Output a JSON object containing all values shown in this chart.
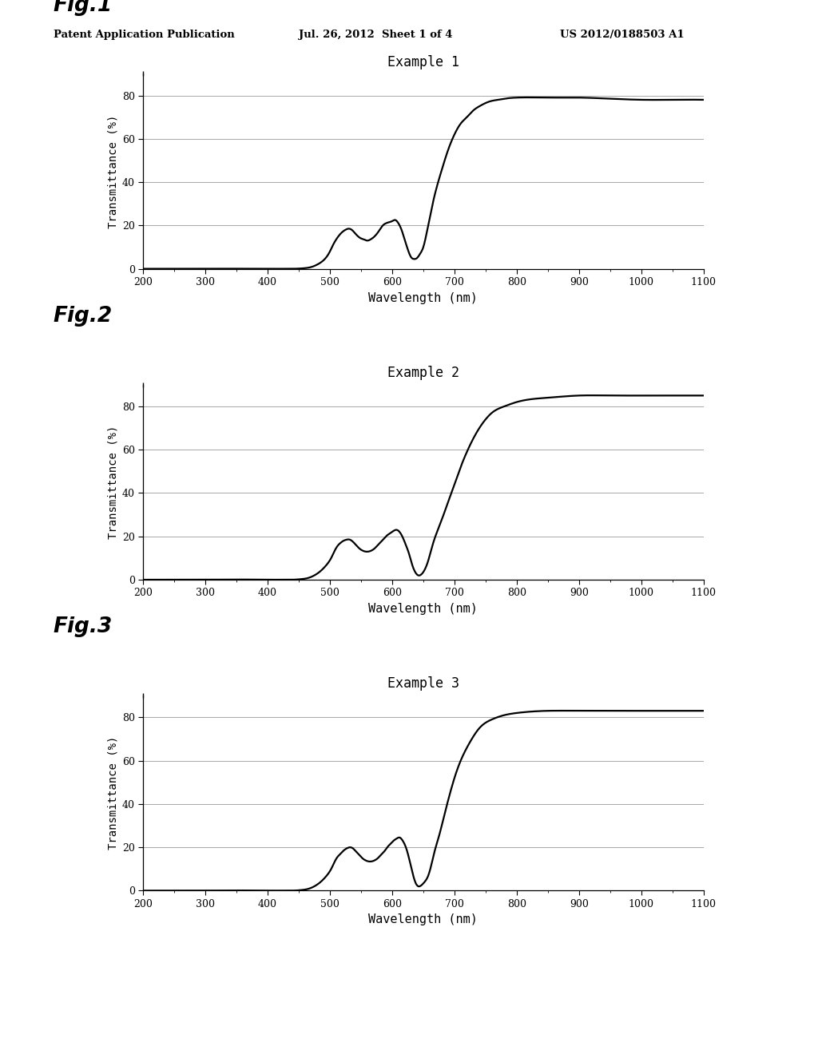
{
  "header_left": "Patent Application Publication",
  "header_mid": "Jul. 26, 2012  Sheet 1 of 4",
  "header_right": "US 2012/0188503 A1",
  "fig_labels": [
    "Fig.1",
    "Fig.2",
    "Fig.3"
  ],
  "titles": [
    "Example 1",
    "Example 2",
    "Example 3"
  ],
  "xlabel": "Wavelength (nm)",
  "ylabel": "Transmittance (%)",
  "xlim": [
    200,
    1100
  ],
  "ylim": [
    0,
    90
  ],
  "yticks": [
    0,
    20,
    40,
    60,
    80
  ],
  "xticks": [
    200,
    300,
    400,
    500,
    600,
    700,
    800,
    900,
    1000,
    1100
  ],
  "background_color": "#ffffff",
  "line_color": "#000000",
  "grid_color": "#999999",
  "curve1_x": [
    200,
    300,
    400,
    440,
    460,
    470,
    480,
    490,
    500,
    505,
    510,
    515,
    520,
    525,
    530,
    535,
    540,
    545,
    550,
    555,
    560,
    565,
    570,
    575,
    580,
    585,
    590,
    595,
    600,
    605,
    610,
    615,
    620,
    625,
    630,
    635,
    640,
    645,
    650,
    655,
    660,
    665,
    670,
    680,
    690,
    700,
    710,
    720,
    730,
    740,
    750,
    760,
    770,
    780,
    800,
    850,
    900,
    950,
    1000,
    1050,
    1100
  ],
  "curve1_y": [
    0,
    0,
    0,
    0,
    0.3,
    0.8,
    2,
    4,
    8,
    11,
    13.5,
    15.5,
    17,
    18,
    18.5,
    18,
    16.5,
    15,
    14,
    13.5,
    13,
    13.5,
    14.5,
    16,
    18,
    20,
    21,
    21.5,
    22,
    22.5,
    21,
    18,
    13.5,
    9,
    5.5,
    4.5,
    5,
    7,
    10,
    16,
    23,
    30,
    36,
    46,
    55,
    62,
    67,
    70,
    73,
    75,
    76.5,
    77.5,
    78,
    78.5,
    79,
    79,
    79,
    78.5,
    78,
    78,
    78
  ],
  "curve2_x": [
    200,
    300,
    400,
    440,
    455,
    465,
    475,
    485,
    495,
    502,
    507,
    512,
    517,
    522,
    527,
    532,
    537,
    542,
    547,
    552,
    557,
    562,
    567,
    572,
    577,
    582,
    587,
    592,
    597,
    602,
    607,
    612,
    617,
    622,
    627,
    632,
    637,
    642,
    647,
    652,
    657,
    662,
    667,
    672,
    680,
    690,
    700,
    710,
    720,
    730,
    740,
    750,
    760,
    780,
    800,
    850,
    900,
    950,
    1000,
    1050,
    1100
  ],
  "curve2_y": [
    0,
    0,
    0,
    0,
    0.3,
    0.8,
    2,
    4,
    7,
    10,
    13,
    15.5,
    17,
    18,
    18.5,
    18.5,
    17.5,
    16,
    14.5,
    13.5,
    13,
    13,
    13.5,
    14.5,
    16,
    17.5,
    19,
    20.5,
    21.5,
    22.5,
    23,
    22,
    19.5,
    16,
    12,
    7,
    3.5,
    2,
    2.5,
    4.5,
    8,
    13,
    18,
    22,
    28,
    36,
    44,
    52,
    59,
    65,
    70,
    74,
    77,
    80,
    82,
    84,
    85,
    85,
    85,
    85,
    85
  ],
  "curve3_x": [
    200,
    300,
    400,
    440,
    455,
    465,
    475,
    485,
    495,
    502,
    507,
    512,
    517,
    522,
    527,
    532,
    537,
    542,
    547,
    552,
    557,
    562,
    567,
    572,
    577,
    582,
    587,
    592,
    597,
    602,
    607,
    612,
    617,
    622,
    627,
    632,
    637,
    642,
    647,
    652,
    658,
    663,
    668,
    675,
    683,
    692,
    700,
    710,
    720,
    730,
    740,
    750,
    760,
    780,
    800,
    850,
    900,
    950,
    1000,
    1050,
    1100
  ],
  "curve3_y": [
    0,
    0,
    0,
    0,
    0.3,
    0.8,
    2,
    4,
    7,
    10,
    13,
    15.5,
    17,
    18.5,
    19.5,
    20,
    19.5,
    18,
    16.5,
    15,
    14,
    13.5,
    13.5,
    14,
    15,
    16.5,
    18,
    20,
    21.5,
    23,
    24,
    24.5,
    23,
    20,
    15,
    9,
    4,
    2,
    2.5,
    4,
    7,
    12,
    18,
    25,
    34,
    44,
    52,
    60,
    66,
    71,
    75,
    77.5,
    79,
    81,
    82,
    83,
    83,
    83,
    83,
    83,
    83
  ]
}
